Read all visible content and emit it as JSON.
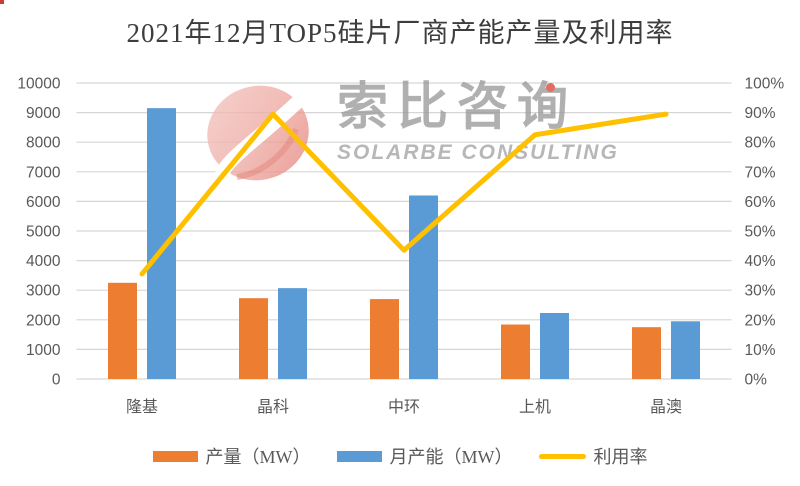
{
  "watermark": {
    "cn": "索比咨询",
    "en": "SOLARBE CONSULTING"
  },
  "colors": {
    "production": "#ED7D31",
    "capacity": "#5B9BD5",
    "utilization": "#FFC000",
    "grid": "#D6D6D6",
    "axis_text": "#595959",
    "title_text": "#3D3D3D",
    "watermark_text": "#9B9B9B",
    "watermark_en_text": "#A3A3A3",
    "logo_pink": "#EFAFA8",
    "logo_red": "#DD6A5C",
    "logo_accent_dot": "#D9453A",
    "corner_dot": "#CF3A33"
  },
  "chart_data": {
    "type": "bar",
    "subtype": "grouped-bar-with-line-combo",
    "title": "2021年12月TOP5硅片厂商产能产量及利用率",
    "categories": [
      "隆基",
      "晶科",
      "中环",
      "上机",
      "晶澳"
    ],
    "series": [
      {
        "name": "产量（MW）",
        "type": "bar",
        "axis": "left",
        "color": "#ED7D31",
        "values": [
          3250,
          2730,
          2700,
          1840,
          1750
        ]
      },
      {
        "name": "月产能（MW）",
        "type": "bar",
        "axis": "left",
        "color": "#5B9BD5",
        "values": [
          9150,
          3070,
          6200,
          2230,
          1950
        ]
      },
      {
        "name": "利用率",
        "type": "line",
        "axis": "right",
        "color": "#FFC000",
        "values": [
          35.5,
          89.5,
          43.5,
          82.5,
          89.5
        ]
      }
    ],
    "left_axis": {
      "min": 0,
      "max": 10000,
      "step": 1000,
      "ticks": [
        "0",
        "1000",
        "2000",
        "3000",
        "4000",
        "5000",
        "6000",
        "7000",
        "8000",
        "9000",
        "10000"
      ]
    },
    "right_axis": {
      "min": 0,
      "max": 100,
      "step": 10,
      "ticks": [
        "0%",
        "10%",
        "20%",
        "30%",
        "40%",
        "50%",
        "60%",
        "70%",
        "80%",
        "90%",
        "100%"
      ]
    },
    "grid": true,
    "legend_position": "bottom"
  }
}
